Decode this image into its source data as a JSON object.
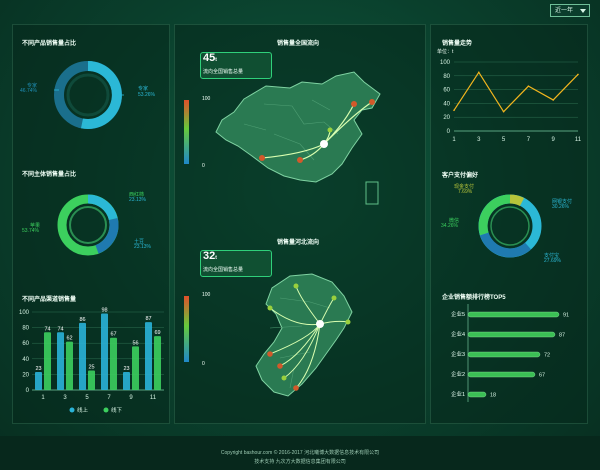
{
  "topbar": {
    "range_select": "近一年"
  },
  "left": {
    "pie1": {
      "title": "不同产品销售量占比",
      "label_a": "专家",
      "value_a": "53.26%",
      "label_b": "专家",
      "value_b": "46.74%"
    },
    "pie2": {
      "title": "不同主体销售量占比",
      "label_a": "西红柿",
      "value_a": "23.13%",
      "label_b": "苹果",
      "value_b": "53.74%",
      "label_c": "土豆",
      "value_c": "23.13%"
    },
    "bars": {
      "title": "不同产品渠道销售量",
      "legend_online": "线上",
      "legend_offline": "线下"
    }
  },
  "center": {
    "map1": {
      "title": "销售量全国流向",
      "count": "45",
      "count_unit": "t",
      "subtitle": "流向全国销售总量",
      "scale_max": "100",
      "scale_min": "0"
    },
    "map2": {
      "title": "销售量河北流向",
      "count": "32",
      "count_unit": "t",
      "subtitle": "流向全国销售总量",
      "scale_max": "100",
      "scale_min": "0"
    }
  },
  "right": {
    "line": {
      "title": "销售量走势",
      "unit": "单位：t"
    },
    "pie3": {
      "title": "客户支付偏好",
      "label_a": "现金支付",
      "value_a": "7.69%",
      "label_b": "网银支付",
      "value_b": "30.26%",
      "label_c": "微信",
      "value_c": "34.26%",
      "label_d": "支付宝",
      "value_d": "27.69%"
    },
    "rank": {
      "title": "企业销售额排行榜TOP5"
    }
  },
  "chart_data": [
    {
      "type": "bar",
      "title": "不同产品渠道销售量",
      "categories": [
        "1",
        "3",
        "5",
        "7",
        "9",
        "11"
      ],
      "series": [
        {
          "name": "线上",
          "values": [
            23,
            74,
            86,
            98,
            23,
            87
          ]
        },
        {
          "name": "线下",
          "values": [
            74,
            62,
            25,
            67,
            56,
            69
          ]
        }
      ],
      "ylim": [
        0,
        100
      ],
      "yticks": [
        0,
        20,
        40,
        60,
        80,
        100
      ],
      "legend": "bottom"
    },
    {
      "type": "line",
      "title": "销售量走势",
      "ylabel": "单位：t",
      "x": [
        1,
        3,
        5,
        7,
        9,
        11
      ],
      "y": [
        30,
        85,
        28,
        65,
        45,
        82
      ],
      "xticks": [
        "1",
        "3",
        "5",
        "7",
        "9",
        "11"
      ],
      "ylim": [
        0,
        100
      ],
      "yticks": [
        0,
        20,
        40,
        60,
        80,
        100
      ],
      "color": "#f2b51e"
    },
    {
      "type": "bar",
      "orientation": "horizontal",
      "title": "企业销售额排行榜TOP5",
      "categories": [
        "企业5",
        "企业4",
        "企业3",
        "企业2",
        "企业1"
      ],
      "values": [
        91,
        87,
        72,
        67,
        18
      ],
      "xlim": [
        0,
        100
      ]
    }
  ],
  "footer": {
    "line1": "Copyright bashour.com © 2016-2017   河北曦博大数据信息技术有限公司",
    "line2": "技术支持   九次方大数据信息集团有限公司"
  },
  "colors": {
    "accent": "#2fd07a",
    "line": "#f2b51e",
    "online": "#2ab3d8",
    "offline": "#3ccf5e"
  }
}
